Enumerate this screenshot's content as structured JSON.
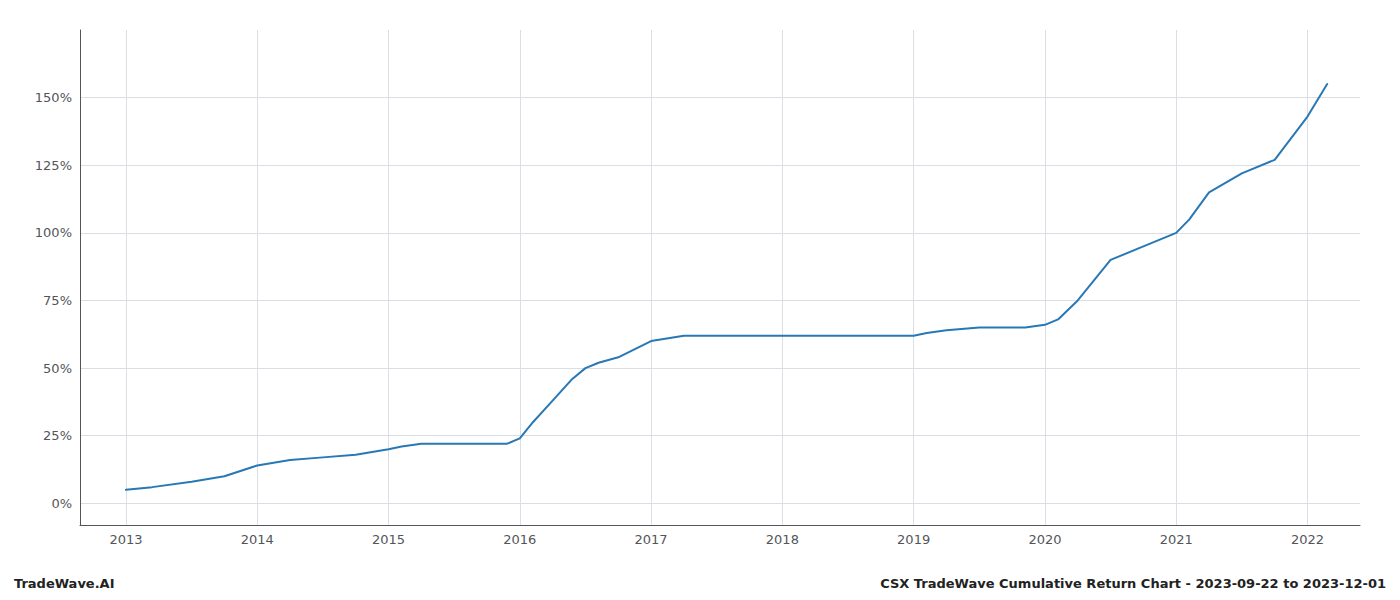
{
  "chart_data": {
    "type": "line",
    "x": [
      2013.0,
      2013.2,
      2013.5,
      2013.75,
      2014.0,
      2014.25,
      2014.5,
      2014.75,
      2015.0,
      2015.1,
      2015.25,
      2015.5,
      2015.75,
      2015.9,
      2016.0,
      2016.1,
      2016.25,
      2016.4,
      2016.5,
      2016.6,
      2016.75,
      2017.0,
      2017.25,
      2017.5,
      2017.75,
      2018.0,
      2018.25,
      2018.5,
      2018.75,
      2019.0,
      2019.1,
      2019.25,
      2019.5,
      2019.75,
      2019.85,
      2020.0,
      2020.1,
      2020.25,
      2020.5,
      2020.75,
      2021.0,
      2021.1,
      2021.25,
      2021.5,
      2021.75,
      2022.0,
      2022.15
    ],
    "values": [
      5,
      6,
      8,
      10,
      14,
      16,
      17,
      18,
      20,
      21,
      22,
      22,
      22,
      22,
      24,
      30,
      38,
      46,
      50,
      52,
      54,
      60,
      62,
      62,
      62,
      62,
      62,
      62,
      62,
      62,
      63,
      64,
      65,
      65,
      65,
      66,
      68,
      75,
      90,
      95,
      100,
      105,
      115,
      122,
      127,
      143,
      155
    ],
    "color": "#2878b5",
    "xlim": [
      2012.65,
      2022.4
    ],
    "xticks": [
      2013,
      2014,
      2015,
      2016,
      2017,
      2018,
      2019,
      2020,
      2021,
      2022
    ],
    "ylim": [
      -8,
      175
    ],
    "yticks": [
      {
        "value": 0,
        "label": "0%"
      },
      {
        "value": 25,
        "label": "25%"
      },
      {
        "value": 50,
        "label": "50%"
      },
      {
        "value": 75,
        "label": "75%"
      },
      {
        "value": 100,
        "label": "100%"
      },
      {
        "value": 125,
        "label": "125%"
      },
      {
        "value": 150,
        "label": "150%"
      }
    ],
    "grid": true,
    "annotations": [
      "TradeWave.AI",
      "CSX TradeWave Cumulative Return Chart - 2023-09-22 to 2023-12-01"
    ]
  }
}
